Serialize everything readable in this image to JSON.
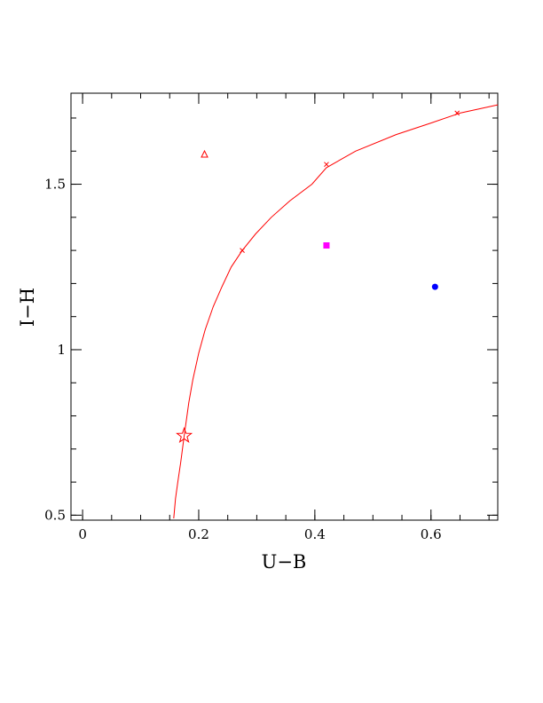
{
  "chart_data": {
    "type": "scatter",
    "title": "",
    "xlabel": "U−B",
    "ylabel": "I−H",
    "xlim": [
      -0.02,
      0.715
    ],
    "ylim": [
      0.485,
      1.775
    ],
    "x_ticks": [
      {
        "value": 0,
        "label": "0"
      },
      {
        "value": 0.2,
        "label": "0.2"
      },
      {
        "value": 0.4,
        "label": "0.4"
      },
      {
        "value": 0.6,
        "label": "0.6"
      }
    ],
    "y_ticks": [
      {
        "value": 0.5,
        "label": "0.5"
      },
      {
        "value": 1,
        "label": "1"
      },
      {
        "value": 1.5,
        "label": "1.5"
      }
    ],
    "x_minor_step": 0.05,
    "y_minor_step": 0.1,
    "grid": false,
    "curve": {
      "color": "#ff0000",
      "points": [
        [
          0.157,
          0.49
        ],
        [
          0.16,
          0.55
        ],
        [
          0.164,
          0.6
        ],
        [
          0.169,
          0.66
        ],
        [
          0.175,
          0.74
        ],
        [
          0.183,
          0.84
        ],
        [
          0.19,
          0.91
        ],
        [
          0.2,
          0.99
        ],
        [
          0.211,
          1.06
        ],
        [
          0.225,
          1.13
        ],
        [
          0.24,
          1.19
        ],
        [
          0.256,
          1.25
        ],
        [
          0.275,
          1.3
        ],
        [
          0.298,
          1.35
        ],
        [
          0.325,
          1.4
        ],
        [
          0.357,
          1.45
        ],
        [
          0.395,
          1.5
        ],
        [
          0.42,
          1.55
        ],
        [
          0.47,
          1.6
        ],
        [
          0.54,
          1.65
        ],
        [
          0.6,
          1.685
        ],
        [
          0.65,
          1.715
        ],
        [
          0.715,
          1.74
        ]
      ]
    },
    "series": [
      {
        "marker": "star",
        "color": "#ff0000",
        "points": [
          [
            0.175,
            0.74
          ]
        ]
      },
      {
        "marker": "cross",
        "color": "#ff0000",
        "points": [
          [
            0.275,
            1.3
          ],
          [
            0.42,
            1.56
          ],
          [
            0.645,
            1.715
          ]
        ]
      },
      {
        "marker": "triangle",
        "color": "#ff0000",
        "points": [
          [
            0.21,
            1.59
          ]
        ]
      },
      {
        "marker": "square",
        "color": "#ff00ff",
        "points": [
          [
            0.42,
            1.315
          ]
        ]
      },
      {
        "marker": "circle",
        "color": "#0000ff",
        "points": [
          [
            0.607,
            1.19
          ]
        ]
      }
    ]
  }
}
